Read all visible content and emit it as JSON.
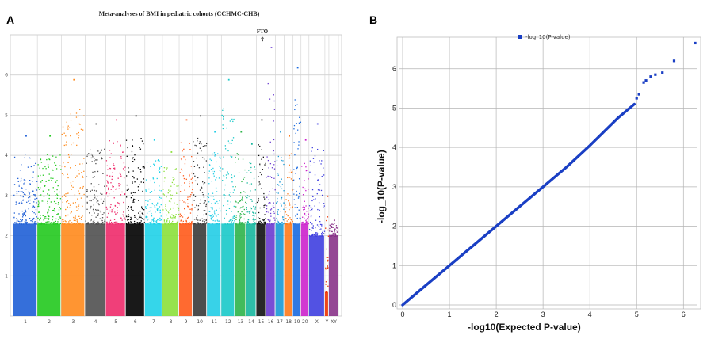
{
  "panels": {
    "a_label": "A",
    "b_label": "B"
  },
  "chart_data": [
    {
      "type": "scatter",
      "subtype": "manhattan",
      "title": "Meta-analyses of BMI in pediatric cohorts (CCHMC-CHB)",
      "xlabel": "",
      "ylabel": "",
      "ylim": [
        0,
        7
      ],
      "yticks": [
        1,
        2,
        3,
        4,
        5,
        6
      ],
      "grid": true,
      "annotation": {
        "label": "FTO",
        "chromosome": "16",
        "arrow": "⇧"
      },
      "chromosome_labels": [
        "1",
        "2",
        "3",
        "4",
        "5",
        "6",
        "7",
        "8",
        "9",
        "10",
        "11",
        "12",
        "13",
        "14",
        "15",
        "16",
        "17",
        "18",
        "19",
        "20",
        "X",
        "Y",
        "XY"
      ],
      "chromosome_colors": [
        "#1f5fd6",
        "#22c91e",
        "#ff8a1c",
        "#505050",
        "#ee2a6a",
        "#000000",
        "#1fd2e8",
        "#8be03a",
        "#ff5a1a",
        "#3a3a3a",
        "#22cde6",
        "#18c9c9",
        "#2eb44a",
        "#17b79e",
        "#111111",
        "#6a3bd0",
        "#1a9ad6",
        "#ff7a1a",
        "#1a6ae0",
        "#cc22cc",
        "#3f3fe0",
        "#ee3300",
        "#883388"
      ],
      "chromosome_top_values": [
        4.5,
        4.5,
        5.9,
        4.8,
        4.9,
        5.0,
        4.4,
        4.1,
        4.9,
        5.0,
        4.6,
        5.9,
        4.6,
        4.3,
        4.9,
        6.7,
        4.6,
        4.5,
        6.2,
        4.4,
        4.8,
        3.0,
        2.4
      ]
    },
    {
      "type": "scatter",
      "subtype": "qq",
      "series": [
        {
          "name": "-log_10(P-value)",
          "color": "#1a3fc4"
        }
      ],
      "xlabel": "-log10(Expected P-value)",
      "ylabel": "-log_10(P-value)",
      "xlim": [
        0,
        6.3
      ],
      "ylim": [
        0,
        6.8
      ],
      "xticks": [
        0,
        1,
        2,
        3,
        4,
        5,
        6
      ],
      "yticks": [
        0,
        1,
        2,
        3,
        4,
        5,
        6
      ],
      "grid": true,
      "legend": "top-center",
      "curve_x": [
        0,
        0.5,
        1.0,
        1.5,
        2.0,
        2.5,
        3.0,
        3.5,
        4.0,
        4.3,
        4.6,
        4.8,
        4.95
      ],
      "curve_y": [
        0,
        0.5,
        1.0,
        1.5,
        2.0,
        2.5,
        3.0,
        3.5,
        4.05,
        4.4,
        4.75,
        4.95,
        5.1
      ],
      "tail_points_x": [
        5.0,
        5.05,
        5.15,
        5.2,
        5.3,
        5.4,
        5.55,
        5.8,
        6.25
      ],
      "tail_points_y": [
        5.25,
        5.35,
        5.65,
        5.7,
        5.8,
        5.85,
        5.9,
        6.2,
        6.65
      ]
    }
  ]
}
